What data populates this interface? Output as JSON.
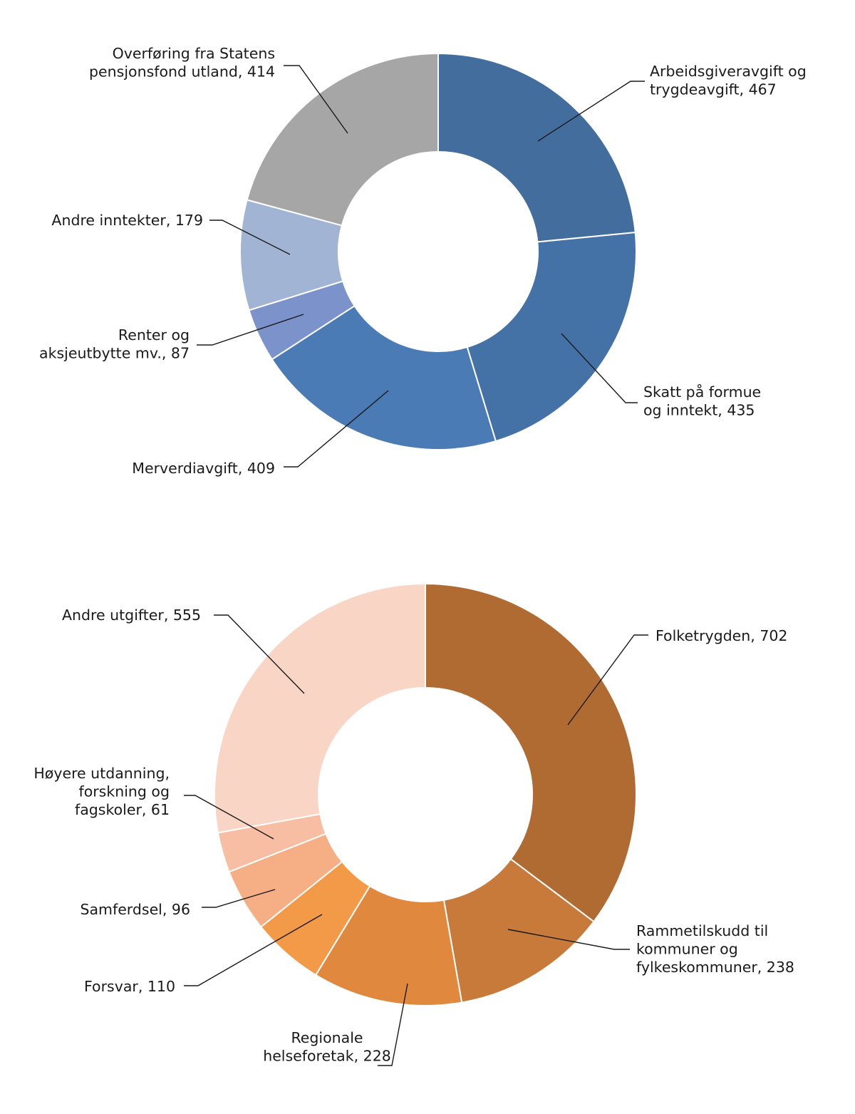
{
  "chart_data": [
    {
      "type": "pie",
      "donut": true,
      "categories": [
        "Arbeidsgiveravgift og trygdeavgift",
        "Skatt på formue og inntekt",
        "Merverdiavgift",
        "Renter og aksjeutbytte mv.",
        "Andre inntekter",
        "Overføring fra Statens pensjonsfond utland"
      ],
      "values": [
        467,
        435,
        409,
        87,
        179,
        414
      ],
      "colors": [
        "#426d9d",
        "#4472a6",
        "#4a7bb5",
        "#7b92cb",
        "#a2b4d4",
        "#a6a6a6"
      ],
      "labels": [
        {
          "lines": [
            "Arbeidsgiveravgift og",
            "trygdeavgift, 467"
          ]
        },
        {
          "lines": [
            "Skatt på formue",
            "og inntekt,  435"
          ]
        },
        {
          "lines": [
            "Merverdiavgift, 409"
          ]
        },
        {
          "lines": [
            "Renter og",
            "aksjeutbytte mv., 87"
          ]
        },
        {
          "lines": [
            "Andre inntekter, 179"
          ]
        },
        {
          "lines": [
            "Overføring fra Statens",
            "pensjonsfond utland, 414"
          ]
        }
      ]
    },
    {
      "type": "pie",
      "donut": true,
      "categories": [
        "Folketrygden",
        "Rammetilskudd til kommuner og fylkeskommuner",
        "Regionale helseforetak",
        "Forsvar",
        "Samferdsel",
        "Høyere utdanning, forskning og fagskoler",
        "Andre utgifter"
      ],
      "values": [
        702,
        238,
        228,
        110,
        96,
        61,
        555
      ],
      "colors": [
        "#b06b33",
        "#c87a3b",
        "#e1883f",
        "#f39a49",
        "#f6ae84",
        "#f8bea3",
        "#f9d5c5"
      ],
      "labels": [
        {
          "lines": [
            "Folketrygden, 702"
          ]
        },
        {
          "lines": [
            "Rammetilskudd til",
            "kommuner og",
            "fylkeskommuner, 238"
          ]
        },
        {
          "lines": [
            "Regionale",
            "helseforetak, 228"
          ]
        },
        {
          "lines": [
            "Forsvar, 110"
          ]
        },
        {
          "lines": [
            "Samferdsel, 96"
          ]
        },
        {
          "lines": [
            "Høyere utdanning,",
            "forskning og",
            "fagskoler, 61"
          ]
        },
        {
          "lines": [
            "Andre utgifter, 555"
          ]
        }
      ]
    }
  ]
}
